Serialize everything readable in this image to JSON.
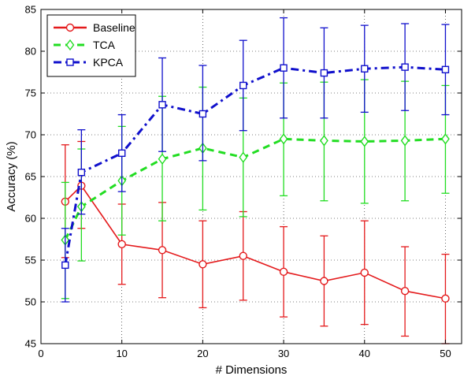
{
  "chart_data": {
    "type": "line",
    "title": "",
    "xlabel": "# Dimensions",
    "ylabel": "Accuracy (%)",
    "xlim": [
      0,
      52
    ],
    "ylim": [
      45,
      85
    ],
    "xticks": [
      0,
      10,
      20,
      30,
      40,
      50
    ],
    "yticks": [
      45,
      50,
      55,
      60,
      65,
      70,
      75,
      80,
      85
    ],
    "grid": true,
    "legend_position": "top-left",
    "x": [
      3,
      5,
      10,
      15,
      20,
      25,
      30,
      35,
      40,
      45,
      50
    ],
    "series": [
      {
        "name": "Baseline",
        "color": "#e41a1c",
        "line_style": "solid",
        "marker": "circle",
        "values": [
          62.0,
          63.9,
          56.9,
          56.2,
          54.5,
          55.5,
          53.6,
          52.5,
          53.5,
          51.3,
          50.4
        ],
        "err_low": [
          55.3,
          58.8,
          52.1,
          50.5,
          49.3,
          50.2,
          48.2,
          47.1,
          47.3,
          45.9,
          45.0
        ],
        "err_high": [
          68.8,
          69.2,
          61.7,
          61.9,
          59.7,
          60.8,
          59.0,
          57.9,
          59.7,
          56.6,
          55.7
        ]
      },
      {
        "name": "TCA",
        "color": "#22dd22",
        "line_style": "dashed",
        "marker": "diamond",
        "values": [
          57.4,
          61.4,
          64.5,
          67.1,
          68.4,
          67.3,
          69.5,
          69.3,
          69.2,
          69.3,
          69.5
        ],
        "err_low": [
          50.4,
          54.9,
          58.0,
          59.7,
          61.0,
          60.2,
          62.7,
          62.1,
          61.8,
          62.1,
          63.0
        ],
        "err_high": [
          64.3,
          68.3,
          71.0,
          74.6,
          75.7,
          74.4,
          76.2,
          76.3,
          76.6,
          76.4,
          75.9
        ]
      },
      {
        "name": "KPCA",
        "color": "#1010cc",
        "line_style": "dashdot",
        "marker": "square",
        "values": [
          54.4,
          65.5,
          67.8,
          73.6,
          72.5,
          75.9,
          78.0,
          77.4,
          77.9,
          78.1,
          77.8
        ],
        "err_low": [
          50.0,
          60.5,
          63.2,
          68.0,
          66.9,
          70.5,
          72.0,
          72.0,
          72.7,
          72.9,
          72.4
        ],
        "err_high": [
          58.8,
          70.6,
          72.4,
          79.2,
          78.3,
          81.3,
          84.0,
          82.8,
          83.1,
          83.3,
          83.2
        ]
      }
    ]
  }
}
